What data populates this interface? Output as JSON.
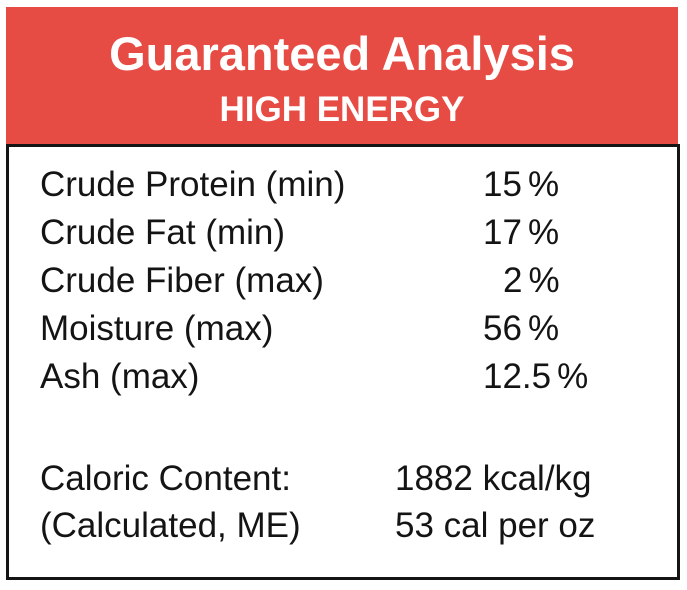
{
  "header": {
    "title": "Guaranteed Analysis",
    "subtitle": "HIGH ENERGY",
    "background_color": "#e74c44",
    "text_color": "#ffffff"
  },
  "analysis": {
    "rows": [
      {
        "label": "Crude Protein (min)",
        "value": "15",
        "unit": "%"
      },
      {
        "label": "Crude Fat (min)",
        "value": "17",
        "unit": "%"
      },
      {
        "label": "Crude Fiber (max)",
        "value": "2",
        "unit": "%"
      },
      {
        "label": "Moisture (max)",
        "value": "56",
        "unit": "%"
      },
      {
        "label": "Ash (max)",
        "value": "12.5",
        "unit": "%"
      }
    ],
    "caloric": {
      "rows": [
        {
          "label": "Caloric Content:",
          "value": "1882 kcal/kg"
        },
        {
          "label": "(Calculated, ME)",
          "value": "53 cal per oz"
        }
      ]
    }
  },
  "colors": {
    "accent_red": "#e74c44",
    "border_black": "#141414",
    "panel_white": "#ffffff"
  }
}
